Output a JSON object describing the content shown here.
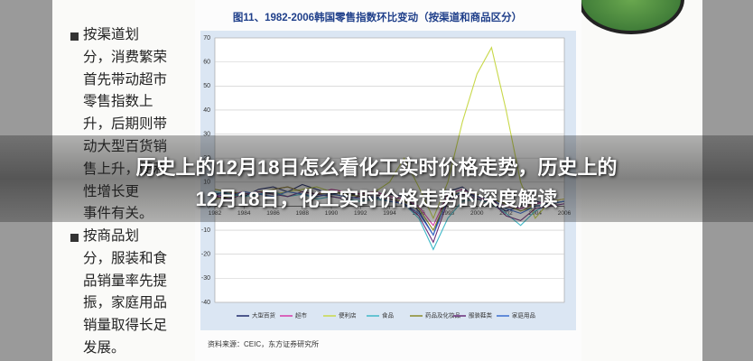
{
  "overlay_title_lines": [
    "历史上的12月18日怎么看化工实时价格走势，历史上的",
    "12月18日，化工实时价格走势的深度解读"
  ],
  "left_text": {
    "paragraph_1": [
      "按渠道划",
      "分，消费繁荣",
      "首先带动超市",
      "零售指数上",
      "升，后期则带",
      "动大型百货销",
      "售上升，便利",
      "性增长更",
      "事件有关。"
    ],
    "paragraph_2": [
      "按商品划",
      "分，服装和食",
      "品销量率先提",
      "振，家庭用品",
      "销量取得长足",
      "发展。"
    ]
  },
  "chart_data": {
    "type": "line",
    "title": "图11、1982-2006韩国零售指数环比变动（按渠道和商品区分）",
    "source": "资料来源：CEIC，东方证券研究所",
    "x": [
      1982,
      1983,
      1984,
      1985,
      1986,
      1987,
      1988,
      1989,
      1990,
      1991,
      1992,
      1993,
      1994,
      1995,
      1996,
      1997,
      1998,
      1999,
      2000,
      2001,
      2002,
      2003,
      2004,
      2005,
      2006
    ],
    "xlim": [
      1982,
      2006
    ],
    "xticks": [
      1982,
      1984,
      1986,
      1988,
      1990,
      1992,
      1994,
      1996,
      1998,
      2000,
      2002,
      2004,
      2006
    ],
    "ylim": [
      -40,
      70
    ],
    "yticks": [
      -40,
      -30,
      -20,
      -10,
      0,
      10,
      20,
      30,
      40,
      50,
      60,
      70
    ],
    "grid": true,
    "series": [
      {
        "name": "大型百货",
        "color": "#1f2a6b",
        "values": [
          5,
          6,
          4,
          7,
          8,
          6,
          9,
          7,
          5,
          6,
          4,
          3,
          5,
          4,
          -2,
          -12,
          6,
          8,
          3,
          1,
          -2,
          0,
          2,
          1,
          2
        ]
      },
      {
        "name": "超市",
        "color": "#d63aa8",
        "values": [
          4,
          5,
          6,
          5,
          7,
          8,
          6,
          5,
          7,
          6,
          5,
          6,
          4,
          3,
          0,
          -8,
          5,
          7,
          4,
          2,
          0,
          -1,
          1,
          2,
          3
        ]
      },
      {
        "name": "便利店",
        "color": "#c8d84a",
        "values": [
          3,
          4,
          5,
          6,
          5,
          6,
          7,
          8,
          6,
          5,
          4,
          6,
          10,
          20,
          8,
          -5,
          10,
          35,
          55,
          66,
          40,
          10,
          -5,
          2,
          3
        ]
      },
      {
        "name": "食品",
        "color": "#3fb8c8",
        "values": [
          6,
          5,
          4,
          5,
          6,
          4,
          5,
          3,
          4,
          3,
          2,
          3,
          2,
          1,
          -5,
          -18,
          -5,
          2,
          3,
          1,
          -3,
          -8,
          -2,
          1,
          2
        ]
      },
      {
        "name": "药品及化妆品",
        "color": "#8a8a2a",
        "values": [
          7,
          6,
          5,
          6,
          7,
          8,
          6,
          5,
          6,
          5,
          4,
          5,
          3,
          2,
          -1,
          -10,
          4,
          6,
          5,
          3,
          1,
          -2,
          0,
          1,
          2
        ]
      },
      {
        "name": "服装鞋类",
        "color": "#6a2d7a",
        "values": [
          4,
          3,
          5,
          6,
          5,
          4,
          6,
          5,
          4,
          3,
          4,
          5,
          3,
          1,
          -4,
          -15,
          2,
          5,
          3,
          2,
          -4,
          -6,
          -1,
          0,
          1
        ]
      },
      {
        "name": "家庭用品",
        "color": "#3a6fd0",
        "values": [
          5,
          4,
          6,
          5,
          4,
          6,
          5,
          4,
          5,
          4,
          3,
          4,
          2,
          1,
          -3,
          -12,
          3,
          6,
          4,
          3,
          -1,
          -3,
          0,
          1,
          2
        ]
      }
    ]
  }
}
